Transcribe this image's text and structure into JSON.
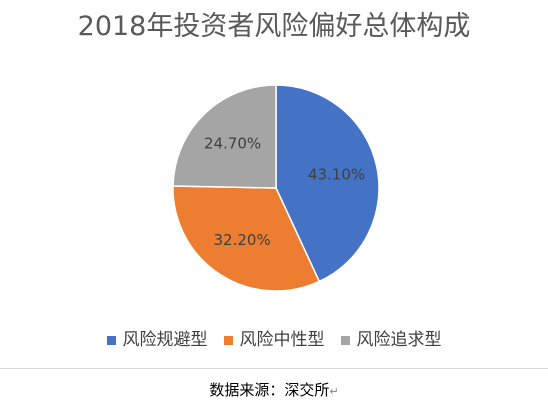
{
  "chart_data": {
    "type": "pie",
    "title": "2018年投资者风险偏好总体构成",
    "slices": [
      {
        "label": "风险规避型",
        "value": 43.1,
        "display": "43.10%",
        "color": "#4472C4"
      },
      {
        "label": "风险中性型",
        "value": 32.2,
        "display": "32.20%",
        "color": "#ED7D31"
      },
      {
        "label": "风险追求型",
        "value": 24.7,
        "display": "24.70%",
        "color": "#A5A5A5"
      }
    ],
    "legend_position": "bottom",
    "start_angle": "12 o'clock, clockwise"
  },
  "source": {
    "text": "数据来源：深交所",
    "return_mark": "↵"
  }
}
